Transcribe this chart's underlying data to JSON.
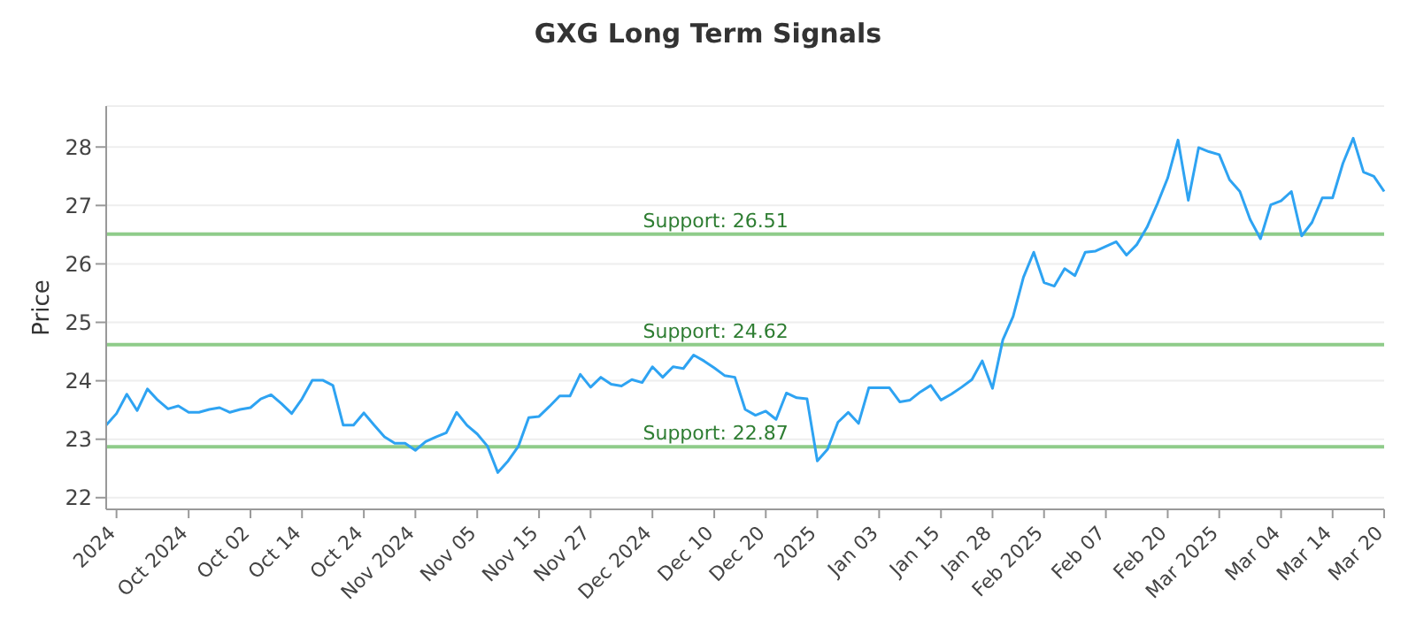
{
  "chart_data": {
    "type": "line",
    "title": "GXG Long Term Signals",
    "ylabel": "Price",
    "categories": [
      null,
      "2024",
      null,
      null,
      null,
      null,
      null,
      null,
      "Oct 2024",
      null,
      null,
      null,
      null,
      null,
      "Oct 02",
      null,
      null,
      null,
      null,
      "Oct 14",
      null,
      null,
      null,
      null,
      null,
      "Oct 24",
      null,
      null,
      null,
      null,
      "Nov 2024",
      null,
      null,
      null,
      null,
      null,
      "Nov 05",
      null,
      null,
      null,
      null,
      null,
      "Nov 15",
      null,
      null,
      null,
      null,
      "Nov 27",
      null,
      null,
      null,
      null,
      null,
      "Dec 2024",
      null,
      null,
      null,
      null,
      null,
      "Dec 10",
      null,
      null,
      null,
      null,
      "Dec 20",
      null,
      null,
      null,
      null,
      "2025",
      null,
      null,
      null,
      null,
      null,
      "Jan 03",
      null,
      null,
      null,
      null,
      null,
      "Jan 15",
      null,
      null,
      null,
      null,
      "Jan 28",
      null,
      null,
      null,
      null,
      "Feb 2025",
      null,
      null,
      null,
      null,
      null,
      "Feb 07",
      null,
      null,
      null,
      null,
      null,
      "Feb 20",
      null,
      null,
      null,
      null,
      "Mar 2025",
      null,
      null,
      null,
      null,
      null,
      "Mar 04",
      null,
      null,
      null,
      null,
      "Mar 14",
      null,
      null,
      null,
      null,
      "Mar 20"
    ],
    "series": [
      {
        "color": "#2ea3f2",
        "values": [
          23.24,
          23.44,
          23.77,
          23.49,
          23.86,
          23.67,
          23.52,
          23.57,
          23.46,
          23.46,
          23.51,
          23.54,
          23.46,
          23.51,
          23.54,
          23.69,
          23.76,
          23.61,
          23.44,
          23.69,
          24.01,
          24.01,
          23.92,
          23.24,
          23.24,
          23.45,
          23.24,
          23.04,
          22.93,
          22.93,
          22.81,
          22.96,
          23.04,
          23.11,
          23.46,
          23.24,
          23.09,
          22.88,
          22.43,
          22.63,
          22.88,
          23.37,
          23.39,
          23.56,
          23.74,
          23.74,
          24.11,
          23.89,
          24.06,
          23.94,
          23.91,
          24.02,
          23.97,
          24.24,
          24.06,
          24.24,
          24.21,
          24.44,
          24.34,
          24.22,
          24.09,
          24.06,
          23.51,
          23.41,
          23.48,
          23.34,
          23.79,
          23.71,
          23.69,
          22.63,
          22.83,
          23.29,
          23.46,
          23.27,
          23.88,
          23.88,
          23.88,
          23.64,
          23.67,
          23.81,
          23.92,
          23.67,
          23.77,
          23.89,
          24.02,
          24.34,
          23.87,
          24.7,
          25.1,
          25.77,
          26.2,
          25.68,
          25.62,
          25.92,
          25.8,
          26.2,
          26.22,
          26.3,
          26.38,
          26.15,
          26.33,
          26.63,
          27.03,
          27.47,
          28.12,
          27.09,
          27.99,
          27.92,
          27.87,
          27.44,
          27.24,
          26.76,
          26.43,
          27.01,
          27.08,
          27.24,
          26.48,
          26.71,
          27.13,
          27.13,
          27.72,
          28.15,
          27.57,
          27.5,
          27.24
        ]
      }
    ],
    "ylim": [
      21.8,
      28.7
    ],
    "yticks": [
      22,
      23,
      24,
      25,
      26,
      27,
      28
    ],
    "grid": "y",
    "marker": "none",
    "line_style": "solid",
    "ref_lines": [
      {
        "axis": "y",
        "value": 26.51,
        "label": "Support: 26.51",
        "color": "#8fcc8a"
      },
      {
        "axis": "y",
        "value": 24.62,
        "label": "Support: 24.62",
        "color": "#8fcc8a"
      },
      {
        "axis": "y",
        "value": 22.87,
        "label": "Support: 22.87",
        "color": "#8fcc8a"
      }
    ]
  }
}
